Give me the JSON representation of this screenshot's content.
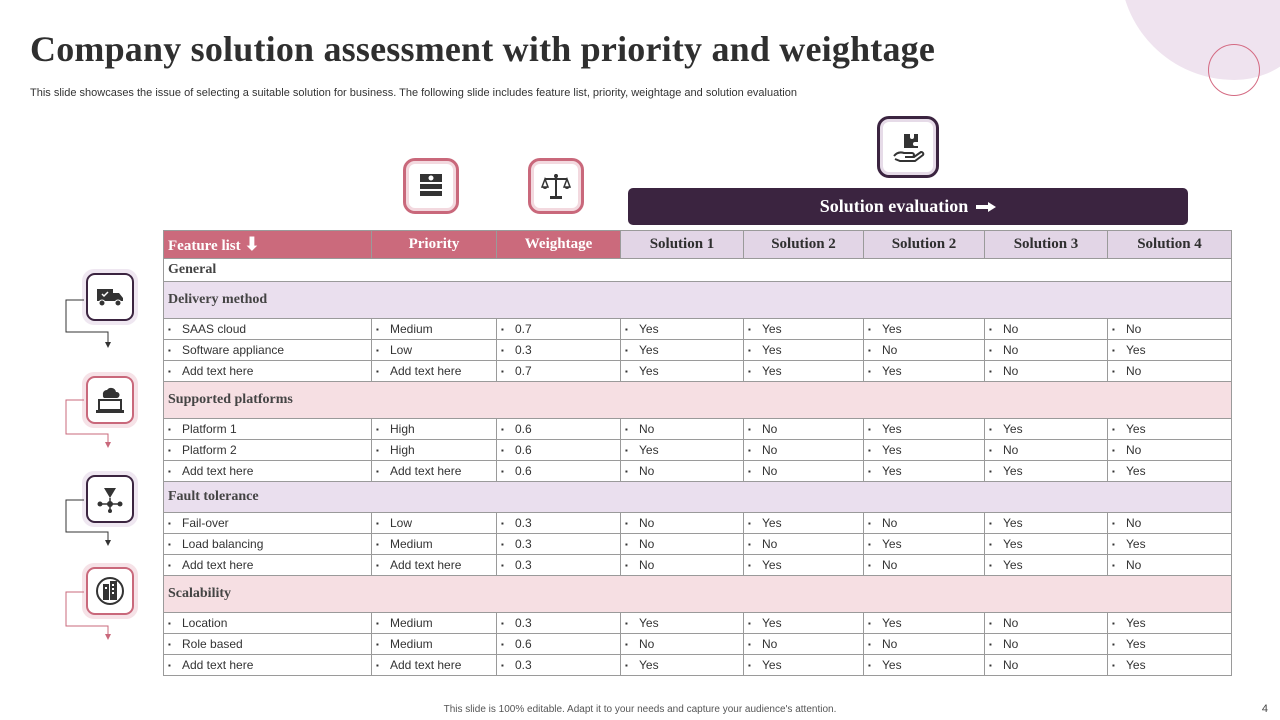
{
  "title": "Company solution assessment with priority and weightage",
  "subtitle": "This slide showcases the issue of selecting a suitable solution for business. The following slide includes feature list, priority, weightage and solution evaluation",
  "solution_evaluation_label": "Solution evaluation",
  "headers": {
    "feature": "Feature list",
    "priority": "Priority",
    "weightage": "Weightage",
    "sol1": "Solution 1",
    "sol2a": "Solution 2",
    "sol2b": "Solution 2",
    "sol3": "Solution 3",
    "sol4": "Solution 4"
  },
  "general_label": "General",
  "sections": {
    "delivery": {
      "label": "Delivery method",
      "rows": [
        [
          "SAAS cloud",
          "Medium",
          "0.7",
          "Yes",
          "Yes",
          "Yes",
          "No",
          "No"
        ],
        [
          "Software appliance",
          "Low",
          "0.3",
          "Yes",
          "Yes",
          "No",
          "No",
          "Yes"
        ],
        [
          "Add text here",
          "Add text here",
          "0.7",
          "Yes",
          "Yes",
          "Yes",
          "No",
          "No"
        ]
      ]
    },
    "platforms": {
      "label": "Supported platforms",
      "rows": [
        [
          "Platform 1",
          "High",
          "0.6",
          "No",
          "No",
          "Yes",
          "Yes",
          "Yes"
        ],
        [
          "Platform 2",
          "High",
          "0.6",
          "Yes",
          "No",
          "Yes",
          "No",
          "No"
        ],
        [
          "Add text here",
          "Add text here",
          "0.6",
          "No",
          "No",
          "Yes",
          "Yes",
          "Yes"
        ]
      ]
    },
    "fault": {
      "label": "Fault tolerance",
      "rows": [
        [
          "Fail-over",
          "Low",
          "0.3",
          "No",
          "Yes",
          "No",
          "Yes",
          "No"
        ],
        [
          "Load balancing",
          "Medium",
          "0.3",
          "No",
          "No",
          "Yes",
          "Yes",
          "Yes"
        ],
        [
          "Add text here",
          "Add text here",
          "0.3",
          "No",
          "Yes",
          "No",
          "Yes",
          "No"
        ]
      ]
    },
    "scalability": {
      "label": "Scalability",
      "rows": [
        [
          "Location",
          "Medium",
          "0.3",
          "Yes",
          "Yes",
          "Yes",
          "No",
          "Yes"
        ],
        [
          "Role based",
          "Medium",
          "0.6",
          "No",
          "No",
          "No",
          "No",
          "Yes"
        ],
        [
          "Add text here",
          "Add text here",
          "0.3",
          "Yes",
          "Yes",
          "Yes",
          "No",
          "Yes"
        ]
      ]
    }
  },
  "icons": {
    "priority": "list-icon",
    "weightage": "scale-icon",
    "solution": "hand-puzzle-icon",
    "delivery": "delivery-truck-icon",
    "platforms": "cloud-laptop-icon",
    "fault": "network-icon",
    "scalability": "buildings-icon"
  },
  "colors": {
    "pink": "#cb6a7c",
    "dark_purple": "#3b2440",
    "lavender": "#e2d5e6",
    "light_pink": "#f6dfe3"
  },
  "footer": "This slide is 100% editable. Adapt it to your needs and capture your audience's attention.",
  "page_number": "4"
}
